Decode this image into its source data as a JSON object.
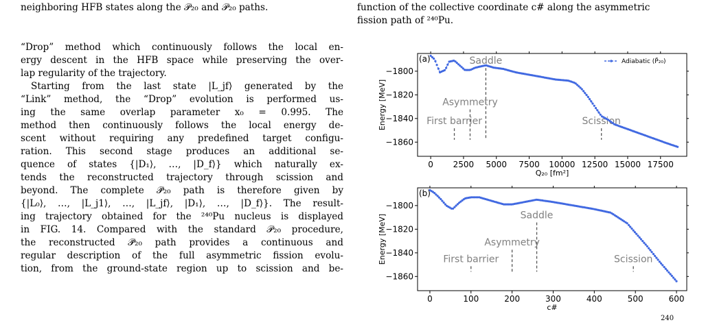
{
  "left_column": {
    "top_caption": "neighboring HFB states along the 𝒫₂₀ and 𝒫₂₀ paths.",
    "paragraph1": [
      "“Drop” method which continuously follows the local en-",
      "ergy descent in the HFB space while preserving the over-",
      "lap regularity of the trajectory."
    ],
    "paragraph2": [
      "Starting from the last state |L_jf⟩ generated by the",
      "“Link” method, the “Drop” evolution is performed us-",
      "ing the same overlap parameter x₀ = 0.995. The",
      "method then continuously follows the local energy de-",
      "scent without requiring any predefined target configu-",
      "ration. This second stage produces an additional se-",
      "quence of states {|D₁⟩, …, |D_f⟩} which naturally ex-",
      "tends the reconstructed trajectory through scission and",
      "beyond. The complete 𝒫̃₂₀ path is therefore given by",
      "{|L₀⟩, …, |L_j1⟩, …, |L_jf⟩, |D₁⟩, …, |D_f⟩}. The result-",
      "ing trajectory obtained for the ²⁴⁰Pu nucleus is displayed",
      "in FIG. 14. Compared with the standard 𝒫₂₀ procedure,",
      "the reconstructed 𝒫̃₂₀ path provides a continuous and",
      "regular description of the full asymmetric fission evolu-",
      "tion, from the ground-state region up to scission and be-"
    ]
  },
  "right_column": {
    "caption_line1": "function of the collective coordinate c# along the asymmetric",
    "caption_line2": "fission path of ²⁴⁰Pu.",
    "bottom_fragment": "240"
  },
  "chart_data": [
    {
      "type": "line",
      "panel_label": "(a)",
      "xlabel": "Q₂₀ [fm²]",
      "ylabel": "Energy [MeV]",
      "xlim": [
        -1000,
        19500
      ],
      "ylim": [
        -1872,
        -1785
      ],
      "xticks": [
        0,
        2500,
        5000,
        7500,
        10000,
        12500,
        15000,
        17500
      ],
      "xtick_labels": [
        "0",
        "2500",
        "5000",
        "7500",
        "10000",
        "12500",
        "15000",
        "17500"
      ],
      "yticks": [
        -1800,
        -1820,
        -1840,
        -1860
      ],
      "ytick_labels": [
        "−1800",
        "−1820",
        "−1840",
        "−1860"
      ],
      "legend": "Adiabatic (P̃₂₀)",
      "legend_position": "top-right",
      "series_color": "#4169e1",
      "x": [
        0,
        300,
        700,
        1100,
        1400,
        1800,
        2200,
        2600,
        3000,
        3400,
        3800,
        4200,
        4800,
        5500,
        6500,
        7500,
        8500,
        9500,
        10500,
        11000,
        11500,
        12000,
        12500,
        13000,
        13500,
        14000,
        15000,
        16000,
        17000,
        18000,
        18800
      ],
      "y": [
        -1787,
        -1790,
        -1801,
        -1799,
        -1792,
        -1791,
        -1795,
        -1799,
        -1799,
        -1797,
        -1796,
        -1795,
        -1797,
        -1798,
        -1801,
        -1803,
        -1805,
        -1807,
        -1808,
        -1810,
        -1815,
        -1822,
        -1830,
        -1838,
        -1841,
        -1845,
        -1849,
        -1853,
        -1857,
        -1861,
        -1864
      ],
      "annotations": [
        {
          "label": "Saddle",
          "x": 4200,
          "y_top": -1795,
          "y_bottom": -1858
        },
        {
          "label": "Asymmetry",
          "x": 3000,
          "y_top": -1830,
          "y_bottom": -1858
        },
        {
          "label": "First barrier",
          "x": 1800,
          "y_top": -1846,
          "y_bottom": -1858
        },
        {
          "label": "Scission",
          "x": 13000,
          "y_top": -1846,
          "y_bottom": -1858
        }
      ]
    },
    {
      "type": "line",
      "panel_label": "(b)",
      "xlabel": "c#",
      "ylabel": "Energy [MeV]",
      "xlim": [
        -30,
        625
      ],
      "ylim": [
        -1872,
        -1785
      ],
      "xticks": [
        0,
        100,
        200,
        300,
        400,
        500,
        600
      ],
      "xtick_labels": [
        "0",
        "100",
        "200",
        "300",
        "400",
        "500",
        "600"
      ],
      "yticks": [
        -1800,
        -1820,
        -1840,
        -1860
      ],
      "ytick_labels": [
        "−1800",
        "−1820",
        "−1840",
        "−1860"
      ],
      "series_color": "#4169e1",
      "x": [
        0,
        10,
        25,
        40,
        55,
        70,
        85,
        100,
        120,
        140,
        160,
        180,
        200,
        230,
        260,
        300,
        350,
        400,
        440,
        480,
        500,
        530,
        560,
        590,
        600
      ],
      "y": [
        -1787,
        -1789,
        -1794,
        -1800,
        -1803,
        -1798,
        -1794,
        -1793,
        -1793,
        -1795,
        -1797,
        -1799,
        -1799,
        -1797,
        -1795,
        -1797,
        -1800,
        -1803,
        -1806,
        -1815,
        -1823,
        -1835,
        -1848,
        -1860,
        -1864
      ],
      "annotations": [
        {
          "label": "Saddle",
          "x": 260,
          "y_top": -1812,
          "y_bottom": -1856
        },
        {
          "label": "Asymmetry",
          "x": 200,
          "y_top": -1835,
          "y_bottom": -1856
        },
        {
          "label": "First barrier",
          "x": 100,
          "y_top": -1849,
          "y_bottom": -1856
        },
        {
          "label": "Scission",
          "x": 495,
          "y_top": -1849,
          "y_bottom": -1856
        }
      ]
    }
  ]
}
